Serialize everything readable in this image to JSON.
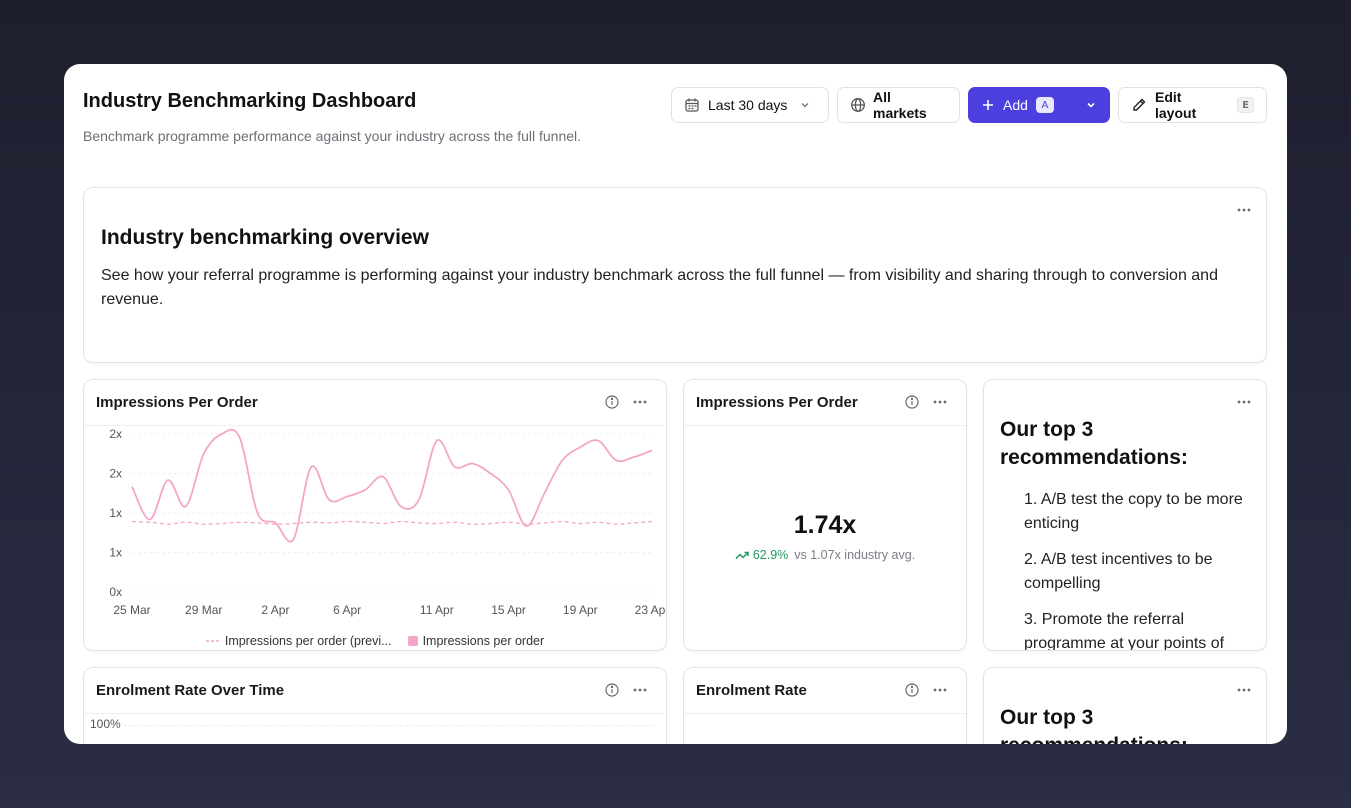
{
  "page": {
    "title": "Industry Benchmarking Dashboard",
    "subtitle": "Benchmark programme performance against your industry across the full funnel."
  },
  "toolbar": {
    "date_range": "Last 30 days",
    "market": "All markets",
    "add_label": "Add",
    "add_shortcut": "A",
    "edit_label": "Edit layout",
    "edit_shortcut": "E",
    "accent": "#4b3fe0"
  },
  "overview": {
    "title": "Industry benchmarking overview",
    "body": "See how your referral programme is performing against your industry benchmark across the full funnel — from visibility and sharing through to conversion and revenue."
  },
  "impressions_chart": {
    "title": "Impressions Per Order",
    "legend_previous": "Impressions per order (previ...",
    "legend_current": "Impressions per order",
    "series_color": "#f4a6c9"
  },
  "chart_data": {
    "type": "line",
    "x": [
      "25 Mar",
      "26 Mar",
      "27 Mar",
      "28 Mar",
      "29 Mar",
      "30 Mar",
      "31 Mar",
      "1 Apr",
      "2 Apr",
      "3 Apr",
      "4 Apr",
      "5 Apr",
      "6 Apr",
      "7 Apr",
      "8 Apr",
      "9 Apr",
      "10 Apr",
      "11 Apr",
      "12 Apr",
      "13 Apr",
      "14 Apr",
      "15 Apr",
      "16 Apr",
      "17 Apr",
      "18 Apr",
      "19 Apr",
      "20 Apr",
      "21 Apr",
      "22 Apr",
      "23 Apr"
    ],
    "x_ticks": [
      "25 Mar",
      "29 Mar",
      "2 Apr",
      "6 Apr",
      "11 Apr",
      "15 Apr",
      "19 Apr",
      "23 Apr"
    ],
    "y_ticks": [
      "0x",
      "1x",
      "1x",
      "2x",
      "2x"
    ],
    "ylim": [
      0,
      2.4
    ],
    "series": [
      {
        "name": "Impressions per order (previ...",
        "style": "dashed",
        "values": [
          1.07,
          1.06,
          1.03,
          1.06,
          1.03,
          1.04,
          1.06,
          1.05,
          1.03,
          1.04,
          1.06,
          1.05,
          1.07,
          1.06,
          1.04,
          1.07,
          1.05,
          1.04,
          1.06,
          1.03,
          1.04,
          1.06,
          1.03,
          1.05,
          1.07,
          1.04,
          1.06,
          1.03,
          1.05,
          1.07
        ]
      },
      {
        "name": "Impressions per order",
        "style": "solid",
        "values": [
          1.6,
          1.1,
          1.7,
          1.3,
          2.1,
          2.4,
          2.35,
          1.2,
          1.05,
          0.8,
          1.9,
          1.4,
          1.45,
          1.55,
          1.75,
          1.3,
          1.4,
          2.3,
          1.9,
          1.95,
          1.8,
          1.55,
          1.0,
          1.5,
          2.0,
          2.2,
          2.3,
          2.0,
          2.05,
          2.15
        ]
      }
    ]
  },
  "kpi": {
    "title": "Impressions Per Order",
    "value": "1.74x",
    "delta": "62.9%",
    "comparison": "vs 1.07x industry avg."
  },
  "recommendations": {
    "title": "Our top 3 recommendations:",
    "items": [
      "1. A/B test the copy to be more enticing",
      "2. A/B test incentives to be compelling",
      "3. Promote the referral programme at your points of"
    ]
  },
  "enrolment_chart": {
    "title": "Enrolment Rate Over Time",
    "y_top_label": "100%"
  },
  "enrolment_kpi": {
    "title": "Enrolment Rate"
  },
  "recommendations2": {
    "title": "Our top 3 recommendations:"
  }
}
